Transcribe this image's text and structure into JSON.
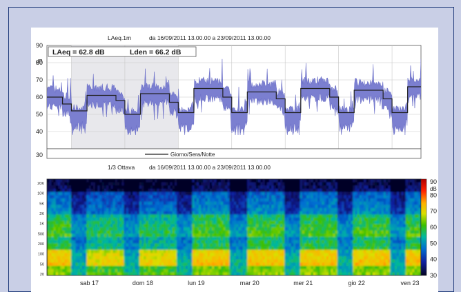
{
  "chart_data": [
    {
      "type": "line",
      "title_left": "LAeq.1m",
      "title_range": "da 16/09/2011 13.00.00    a 23/09/2011 13.00.00",
      "ylabel": "dB",
      "ylim": [
        30,
        90
      ],
      "yticks": [
        90,
        80,
        70,
        60,
        50,
        40,
        30
      ],
      "summary_laeq": "LAeq = 62.8 dB",
      "summary_lden": "Lden = 66.2 dB",
      "legend": "Giorno/Sera/Notte",
      "x_start_hour": 13,
      "x_hours": 168,
      "series": [
        {
          "kind": "laeq-1m",
          "color": "#7b7fd0"
        },
        {
          "kind": "day-evening-night",
          "color": "#222222",
          "steps": [
            {
              "h": 0,
              "v": 60
            },
            {
              "h": 7,
              "v": 56
            },
            {
              "h": 11,
              "v": 52
            },
            {
              "h": 18,
              "v": 61
            },
            {
              "h": 31,
              "v": 58
            },
            {
              "h": 35,
              "v": 50
            },
            {
              "h": 42,
              "v": 62
            },
            {
              "h": 55,
              "v": 57
            },
            {
              "h": 59,
              "v": 51
            },
            {
              "h": 66,
              "v": 65
            },
            {
              "h": 79,
              "v": 60
            },
            {
              "h": 83,
              "v": 51
            },
            {
              "h": 90,
              "v": 63
            },
            {
              "h": 103,
              "v": 59
            },
            {
              "h": 107,
              "v": 51
            },
            {
              "h": 114,
              "v": 65
            },
            {
              "h": 127,
              "v": 60
            },
            {
              "h": 131,
              "v": 51
            },
            {
              "h": 138,
              "v": 64
            },
            {
              "h": 151,
              "v": 59
            },
            {
              "h": 155,
              "v": 51
            },
            {
              "h": 162,
              "v": 66
            },
            {
              "h": 168,
              "v": 66
            }
          ]
        }
      ]
    },
    {
      "type": "heatmap",
      "title_left": "1/3 Ottava",
      "title_range": "da 16/09/2011 13.00.00    a 23/09/2011 13.00.00",
      "yticks": [
        "20K",
        "10K",
        "5K",
        "2K",
        "1K",
        "500",
        "200",
        "100",
        "50",
        "20"
      ],
      "colorbar_unit": "dB",
      "colorbar_ticks": [
        90,
        80,
        70,
        60,
        50,
        40,
        30
      ],
      "colorbar_range": [
        30,
        90
      ],
      "xticks": [
        "sab 17",
        "dom 18",
        "lun 19",
        "mar 20",
        "mer 21",
        "gio 22",
        "ven 23"
      ]
    }
  ]
}
